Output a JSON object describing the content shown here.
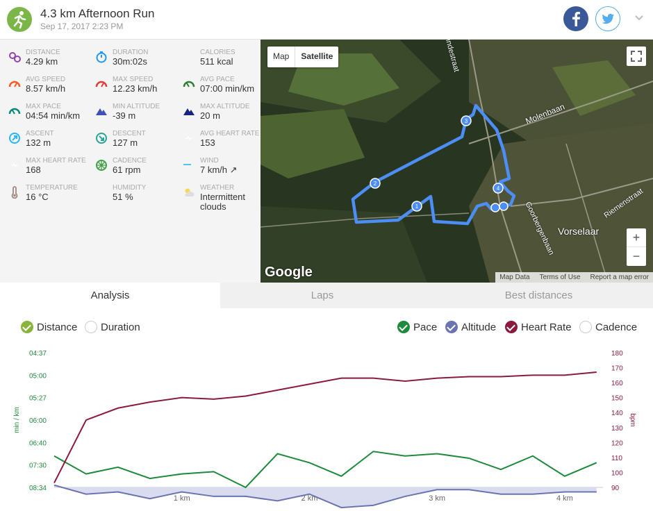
{
  "header": {
    "title": "4.3 km Afternoon Run",
    "subtitle": "Sep 17, 2017 2:23 PM",
    "icons": [
      "runner-icon",
      "facebook-icon",
      "twitter-icon",
      "chevron-down-icon"
    ]
  },
  "stats": [
    {
      "label": "DISTANCE",
      "value": "4.29 km",
      "icon": "distance-icon",
      "color": "#8e44ad"
    },
    {
      "label": "DURATION",
      "value": "30m:02s",
      "icon": "stopwatch-icon",
      "color": "#2196f3"
    },
    {
      "label": "CALORIES",
      "value": "511 kcal",
      "icon": "flame-icon",
      "color": "#ff7043"
    },
    {
      "label": "AVG SPEED",
      "value": "8.57 km/h",
      "icon": "speedometer-icon",
      "color": "#ff5722"
    },
    {
      "label": "MAX SPEED",
      "value": "12.23 km/h",
      "icon": "speedometer-icon",
      "color": "#e53935"
    },
    {
      "label": "AVG PACE",
      "value": "07:00 min/km",
      "icon": "pace-gauge-icon",
      "color": "#2e7d32"
    },
    {
      "label": "MAX PACE",
      "value": "04:54 min/km",
      "icon": "pace-gauge-icon",
      "color": "#00897b"
    },
    {
      "label": "MIN ALTITUDE",
      "value": "-39 m",
      "icon": "mountain-icon",
      "color": "#3f51b5"
    },
    {
      "label": "MAX ALTITUDE",
      "value": "20 m",
      "icon": "mountain-icon",
      "color": "#1a237e"
    },
    {
      "label": "ASCENT",
      "value": "132 m",
      "icon": "ascent-icon",
      "color": "#29b6f6"
    },
    {
      "label": "DESCENT",
      "value": "127 m",
      "icon": "descent-icon",
      "color": "#26a69a"
    },
    {
      "label": "AVG HEART RATE",
      "value": "153",
      "icon": "heart-icon",
      "color": "#c2185b"
    },
    {
      "label": "MAX HEART RATE",
      "value": "168",
      "icon": "heart-icon",
      "color": "#ad1457"
    },
    {
      "label": "CADENCE",
      "value": "61 rpm",
      "icon": "cadence-icon",
      "color": "#43a047"
    },
    {
      "label": "WIND",
      "value": "7 km/h ↗",
      "icon": "wind-icon",
      "color": "#4fc3f7"
    },
    {
      "label": "TEMPERATURE",
      "value": "16 °C",
      "icon": "thermometer-icon",
      "color": "#a1887f"
    },
    {
      "label": "HUMIDITY",
      "value": "51 %",
      "icon": "humidity-icon",
      "color": "#64b5f6"
    },
    {
      "label": "WEATHER",
      "value": "Intermittent clouds",
      "icon": "cloud-sun-icon",
      "color": "#ffd54f"
    }
  ],
  "map": {
    "type_map": "Map",
    "type_satellite": "Satellite",
    "zoom_in": "+",
    "zoom_out": "−",
    "logo": "Google",
    "footer": [
      "Map Data",
      "Terms of Use",
      "Report a map error"
    ],
    "labels": [
      "Molenbaan",
      "Vorselaar",
      "Goorbergenbaan",
      "Riemenstraat",
      "Lindestraat"
    ]
  },
  "tabs": [
    "Analysis",
    "Laps",
    "Best distances"
  ],
  "toggles": {
    "distance": "Distance",
    "duration": "Duration",
    "pace": "Pace",
    "altitude": "Altitude",
    "heart_rate": "Heart Rate",
    "cadence": "Cadence"
  },
  "colors": {
    "pace": "#1e8a3c",
    "altitude": "#6b74b0",
    "heart_rate": "#8b1a3f",
    "distance_toggle": "#8bb43a",
    "route": "#4c8ef5"
  },
  "chart_data": {
    "type": "line",
    "xlabel": "",
    "x_ticks": [
      "1 km",
      "2 km",
      "3 km",
      "4 km"
    ],
    "x": [
      0,
      0.25,
      0.5,
      0.75,
      1,
      1.25,
      1.5,
      1.75,
      2,
      2.25,
      2.5,
      2.75,
      3,
      3.25,
      3.5,
      3.75,
      4,
      4.25
    ],
    "ylabel_left": "min / km",
    "ylabel_right": "bpm",
    "y_left_ticks": [
      "04:37",
      "05:00",
      "05:27",
      "06:00",
      "06:40",
      "07:30",
      "08:34"
    ],
    "y_right_ticks": [
      180,
      170,
      160,
      150,
      140,
      130,
      120,
      110,
      100,
      90
    ],
    "series": [
      {
        "name": "Pace",
        "axis": "left_index",
        "values": [
          4.6,
          5.4,
          5.1,
          5.6,
          5.4,
          5.3,
          6.0,
          4.5,
          4.9,
          5.5,
          4.4,
          4.6,
          4.5,
          4.7,
          5.2,
          4.6,
          5.5,
          4.9
        ]
      },
      {
        "name": "Altitude",
        "axis": "left_index",
        "values": [
          5.9,
          6.3,
          6.2,
          6.5,
          6.2,
          6.4,
          6.4,
          6.6,
          6.3,
          6.9,
          6.8,
          6.4,
          6.1,
          6.1,
          6.3,
          6.3,
          6.2,
          6.2
        ]
      },
      {
        "name": "Heart Rate",
        "axis": "right",
        "values": [
          93,
          135,
          143,
          147,
          150,
          149,
          151,
          155,
          159,
          163,
          163,
          161,
          163,
          164,
          164,
          165,
          165,
          167
        ]
      }
    ]
  }
}
